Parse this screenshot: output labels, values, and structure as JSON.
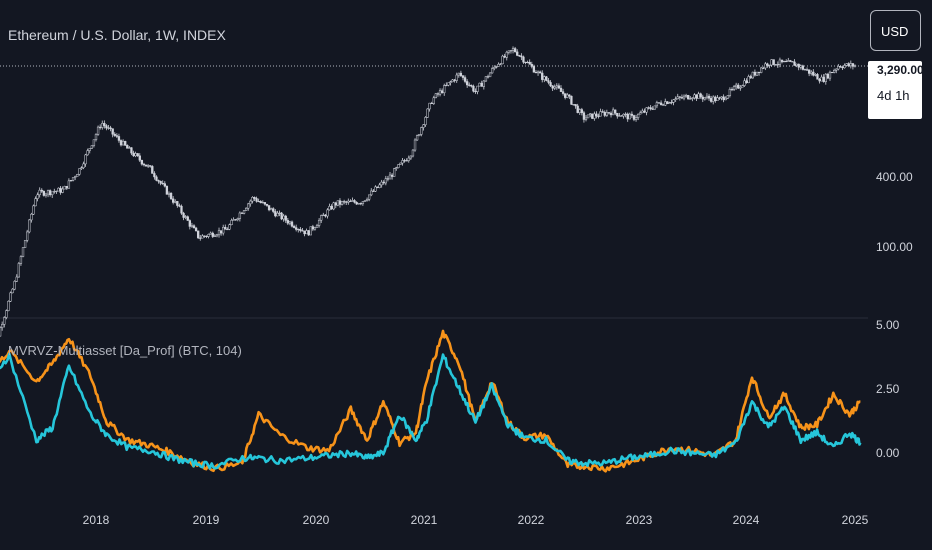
{
  "header": {
    "title": "Ethereum / U.S. Dollar, 1W, INDEX"
  },
  "currency_button": {
    "label": "USD"
  },
  "price_tag": {
    "price": "3,290.00",
    "countdown": "4d 1h"
  },
  "indicator": {
    "title": "MVRVZ-Multiasset [Da_Prof] (BTC, 104)"
  },
  "colors": {
    "background": "#131722",
    "candles": "#d1d4dc",
    "series_orange": "#f7931a",
    "series_cyan": "#26c6da",
    "grid": "#2a2e39"
  },
  "chart_data": [
    {
      "type": "candlestick",
      "title": "Ethereum / U.S. Dollar, 1W, INDEX",
      "scale": "log",
      "y_ticks": [
        "400.00",
        "100.00"
      ],
      "x_ticks": [
        "2018",
        "2019",
        "2020",
        "2021",
        "2022",
        "2023",
        "2024",
        "2025"
      ],
      "x": [
        2017.0,
        2017.25,
        2017.45,
        2017.7,
        2017.85,
        2018.05,
        2018.3,
        2018.5,
        2018.75,
        2018.95,
        2019.2,
        2019.45,
        2019.7,
        2019.95,
        2020.2,
        2020.45,
        2020.7,
        2020.9,
        2021.1,
        2021.35,
        2021.5,
        2021.7,
        2021.85,
        2022.1,
        2022.35,
        2022.5,
        2022.75,
        2022.95,
        2023.2,
        2023.5,
        2023.75,
        2023.95,
        2024.2,
        2024.45,
        2024.7,
        2024.85,
        2025.0
      ],
      "close": [
        10,
        50,
        280,
        300,
        450,
        1100,
        650,
        450,
        220,
        120,
        140,
        260,
        180,
        130,
        230,
        240,
        380,
        600,
        1700,
        2800,
        2000,
        3400,
        4500,
        2700,
        1800,
        1200,
        1350,
        1200,
        1600,
        1850,
        1700,
        2300,
        3500,
        3400,
        2500,
        3300,
        3290
      ],
      "current_price": 3290
    },
    {
      "type": "line",
      "title": "MVRVZ-Multiasset [Da_Prof] (BTC, 104)",
      "y_ticks": [
        "5.00",
        "2.50",
        "0.00"
      ],
      "ylim": [
        -0.95,
        5.0
      ],
      "x_ticks": [
        "2018",
        "2019",
        "2020",
        "2021",
        "2022",
        "2023",
        "2024",
        "2025"
      ],
      "series": [
        {
          "color": "#f7931a",
          "x": [
            2017.0,
            2017.2,
            2017.45,
            2017.6,
            2017.75,
            2017.95,
            2018.1,
            2018.3,
            2018.5,
            2018.7,
            2018.9,
            2019.1,
            2019.35,
            2019.5,
            2019.7,
            2019.95,
            2020.15,
            2020.35,
            2020.5,
            2020.65,
            2020.8,
            2020.95,
            2021.05,
            2021.2,
            2021.35,
            2021.5,
            2021.65,
            2021.8,
            2021.95,
            2022.15,
            2022.35,
            2022.5,
            2022.7,
            2022.9,
            2023.1,
            2023.3,
            2023.5,
            2023.7,
            2023.9,
            2024.05,
            2024.2,
            2024.35,
            2024.5,
            2024.65,
            2024.8,
            2024.95,
            2025.05
          ],
          "y": [
            3.0,
            4.0,
            2.8,
            3.5,
            4.5,
            3.0,
            1.2,
            0.5,
            0.3,
            0.0,
            -0.4,
            -0.6,
            -0.4,
            1.5,
            0.7,
            0.2,
            0.1,
            1.7,
            0.5,
            2.0,
            0.4,
            0.8,
            2.8,
            4.7,
            3.5,
            1.2,
            2.8,
            1.2,
            0.6,
            0.7,
            -0.5,
            -0.5,
            -0.6,
            -0.4,
            -0.1,
            0.2,
            0.1,
            -0.1,
            0.5,
            3.0,
            1.4,
            2.3,
            1.0,
            1.1,
            2.3,
            1.5,
            2.0
          ]
        },
        {
          "color": "#26c6da",
          "x": [
            2017.0,
            2017.2,
            2017.45,
            2017.6,
            2017.75,
            2017.95,
            2018.1,
            2018.3,
            2018.5,
            2018.7,
            2018.9,
            2019.1,
            2019.35,
            2019.5,
            2019.7,
            2019.95,
            2020.15,
            2020.35,
            2020.5,
            2020.65,
            2020.8,
            2020.95,
            2021.05,
            2021.2,
            2021.35,
            2021.5,
            2021.65,
            2021.8,
            2021.95,
            2022.15,
            2022.35,
            2022.5,
            2022.7,
            2022.9,
            2023.1,
            2023.3,
            2023.5,
            2023.7,
            2023.9,
            2024.05,
            2024.2,
            2024.35,
            2024.5,
            2024.65,
            2024.8,
            2024.95,
            2025.05
          ],
          "y": [
            2.8,
            3.8,
            0.5,
            1.0,
            3.4,
            1.5,
            0.7,
            0.2,
            0.1,
            -0.2,
            -0.4,
            -0.5,
            -0.2,
            -0.2,
            -0.3,
            -0.2,
            -0.1,
            0.0,
            -0.2,
            0.0,
            1.5,
            0.5,
            1.3,
            3.8,
            2.5,
            1.2,
            2.6,
            1.1,
            0.6,
            0.5,
            -0.3,
            -0.4,
            -0.4,
            -0.2,
            -0.1,
            0.1,
            0.0,
            -0.1,
            0.4,
            2.0,
            1.0,
            1.8,
            0.5,
            0.8,
            0.2,
            0.8,
            0.4
          ]
        }
      ]
    }
  ]
}
